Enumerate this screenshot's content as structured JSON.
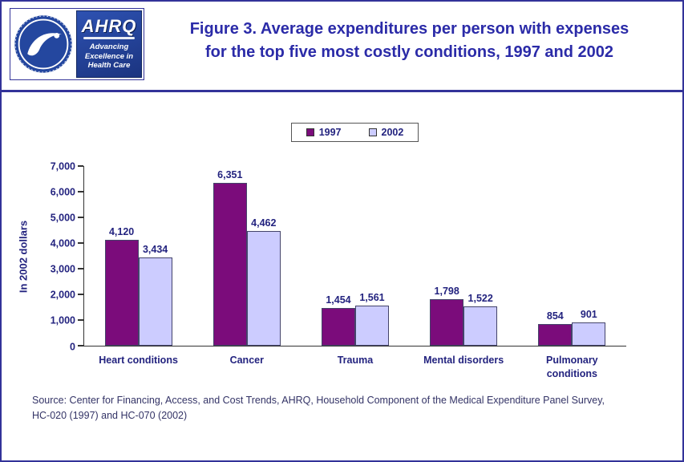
{
  "page": {
    "title_line1": "Figure 3. Average expenditures per person with expenses",
    "title_line2": "for the top five most costly conditions, 1997 and 2002"
  },
  "logos": {
    "ahrq_name": "AHRQ",
    "ahrq_tagline_line1": "Advancing",
    "ahrq_tagline_line2": "Excellence in",
    "ahrq_tagline_line3": "Health Care"
  },
  "colors": {
    "page_border": "#333399",
    "title_text": "#2B2BA8",
    "axis_text": "#23237F",
    "source_text": "#333366",
    "bar_1997": "#7B0C7B",
    "bar_2002": "#CCCCFF"
  },
  "chart_data": {
    "type": "bar",
    "title": "Average expenditures per person with expenses for the top five most costly conditions, 1997 and 2002",
    "categories": [
      "Heart conditions",
      "Cancer",
      "Trauma",
      "Mental disorders",
      "Pulmonary conditions"
    ],
    "series": [
      {
        "name": "1997",
        "color": "#7B0C7B",
        "values": [
          4120,
          6351,
          1454,
          1798,
          854
        ]
      },
      {
        "name": "2002",
        "color": "#CCCCFF",
        "values": [
          3434,
          4462,
          1561,
          1522,
          901
        ]
      }
    ],
    "xlabel": "",
    "ylabel": "In 2002 dollars",
    "ylim": [
      0,
      7000
    ],
    "ytick_step": 1000,
    "grid": false,
    "legend_position": "top-center",
    "value_labels": true
  },
  "source": {
    "line1": "Source: Center for Financing, Access, and Cost Trends, AHRQ, Household Component of the Medical Expenditure Panel Survey,",
    "line2": "HC-020 (1997) and HC-070 (2002)"
  }
}
